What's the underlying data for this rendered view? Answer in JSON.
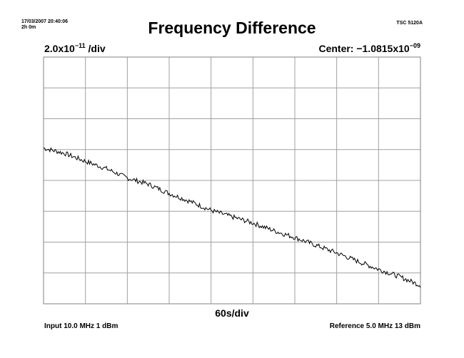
{
  "header": {
    "timestamp": "17/03/2007 20:40:06",
    "duration": "2h 0m",
    "model": "TSC 5120A"
  },
  "chart_data": {
    "type": "line",
    "title": "Frequency Difference",
    "scale": {
      "mantissa": "2.0x10",
      "exponent": "−11",
      "suffix": " /div"
    },
    "center": {
      "prefix": "Center: −1.0815x10",
      "exponent": "−09"
    },
    "xlabel": "60s/div",
    "grid": true,
    "x_divisions": 9,
    "y_divisions": 8,
    "xlim_div": [
      0,
      9
    ],
    "ylim_div": [
      -4,
      4
    ],
    "trace_div": [
      [
        0.0,
        1.05
      ],
      [
        0.5,
        0.88
      ],
      [
        1.0,
        0.62
      ],
      [
        1.5,
        0.38
      ],
      [
        2.0,
        0.08
      ],
      [
        2.5,
        -0.12
      ],
      [
        3.0,
        -0.42
      ],
      [
        3.5,
        -0.68
      ],
      [
        4.0,
        -0.97
      ],
      [
        4.5,
        -1.18
      ],
      [
        5.0,
        -1.38
      ],
      [
        5.5,
        -1.63
      ],
      [
        6.0,
        -1.85
      ],
      [
        6.5,
        -2.1
      ],
      [
        7.0,
        -2.35
      ],
      [
        7.5,
        -2.62
      ],
      [
        8.0,
        -2.88
      ],
      [
        8.5,
        -3.12
      ],
      [
        9.0,
        -3.4
      ]
    ],
    "line_color": "#000000",
    "grid_color": "#a0a0a0"
  },
  "footer": {
    "input": "Input 10.0 MHz 1 dBm",
    "reference": "Reference 5.0 MHz 13 dBm"
  }
}
